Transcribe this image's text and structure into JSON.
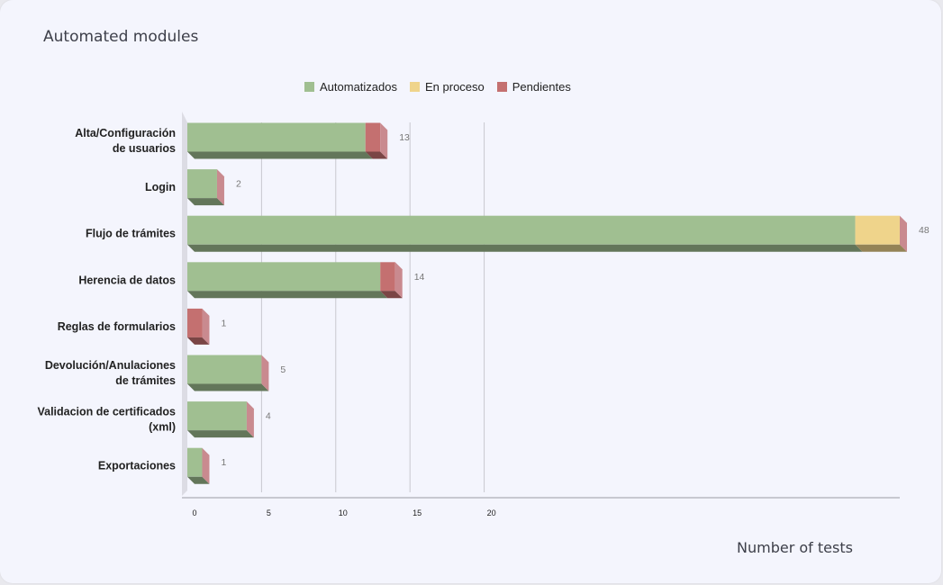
{
  "title": "Automated modules",
  "chart_data": {
    "type": "bar",
    "orientation": "horizontal",
    "stacked": true,
    "categories": [
      [
        "Alta/Configuración",
        "de usuarios"
      ],
      [
        "Login"
      ],
      [
        "Flujo de trámites"
      ],
      [
        "Herencia de datos"
      ],
      [
        "Reglas de formularios"
      ],
      [
        "Devolución/Anulaciones",
        "de trámites"
      ],
      [
        "Validacion de certificados",
        "(xml)"
      ],
      [
        "Exportaciones"
      ]
    ],
    "series": [
      {
        "name": "Automatizados",
        "color": "#a0bf91",
        "values": [
          12,
          2,
          45,
          13,
          0,
          5,
          4,
          1
        ]
      },
      {
        "name": "En proceso",
        "color": "#efd48b",
        "values": [
          0,
          0,
          3,
          0,
          0,
          0,
          0,
          0
        ]
      },
      {
        "name": "Pendientes",
        "color": "#c47070",
        "values": [
          1,
          0,
          0,
          1,
          1,
          0,
          0,
          0
        ]
      }
    ],
    "totals": [
      "13",
      "2",
      "48",
      "14",
      "1",
      "5",
      "4",
      "1"
    ],
    "xticks": [
      "0",
      "5",
      "10",
      "15",
      "20"
    ],
    "xlabel": "Number of tests",
    "xlim": [
      0,
      48
    ],
    "grid": true,
    "legend": "top"
  }
}
